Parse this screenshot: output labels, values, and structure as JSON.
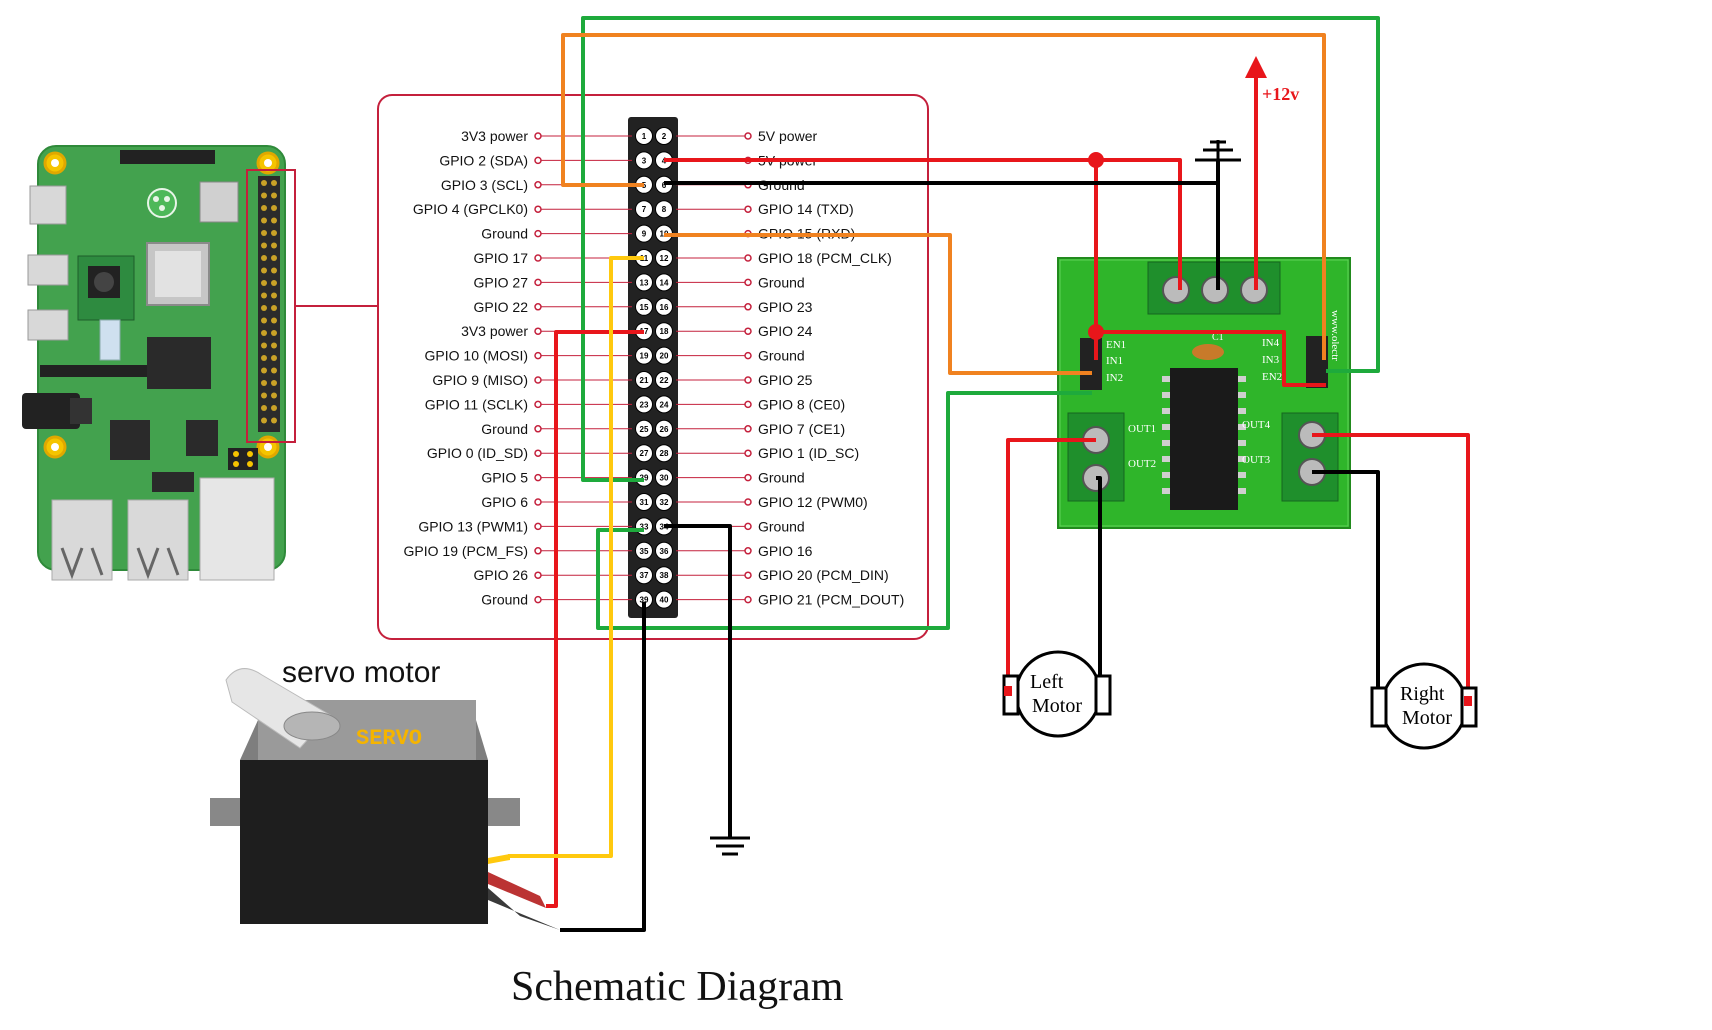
{
  "title": "Schematic Diagram",
  "servo_label": "servo motor",
  "servo_brand": "SERVO",
  "supply_label": "+12v",
  "left_motor": {
    "line1": "Left",
    "line2": "Motor"
  },
  "right_motor": {
    "line1": "Right",
    "line2": "Motor"
  },
  "driver": {
    "pins_left": [
      "EN1",
      "IN1",
      "IN2"
    ],
    "pins_right": [
      "IN4",
      "IN3",
      "EN2"
    ],
    "out_left": [
      "OUT1",
      "OUT2"
    ],
    "out_right": [
      "OUT4",
      "OUT3"
    ],
    "chip_id": "C1",
    "side_text": "www.olectr"
  },
  "gpio_header": {
    "left_labels": [
      "3V3 power",
      "GPIO 2 (SDA)",
      "GPIO 3 (SCL)",
      "GPIO 4 (GPCLK0)",
      "Ground",
      "GPIO 17",
      "GPIO 27",
      "GPIO 22",
      "3V3 power",
      "GPIO 10 (MOSI)",
      "GPIO 9 (MISO)",
      "GPIO 11 (SCLK)",
      "Ground",
      "GPIO 0 (ID_SD)",
      "GPIO 5",
      "GPIO 6",
      "GPIO 13 (PWM1)",
      "GPIO 19 (PCM_FS)",
      "GPIO 26",
      "Ground"
    ],
    "right_labels": [
      "5V power",
      "5V power",
      "Ground",
      "GPIO 14 (TXD)",
      "GPIO 15 (RXD)",
      "GPIO 18 (PCM_CLK)",
      "Ground",
      "GPIO 23",
      "GPIO 24",
      "Ground",
      "GPIO 25",
      "GPIO 8 (CE0)",
      "GPIO 7 (CE1)",
      "GPIO 1 (ID_SC)",
      "Ground",
      "GPIO 12 (PWM0)",
      "Ground",
      "GPIO 16",
      "GPIO 20 (PCM_DIN)",
      "GPIO 21 (PCM_DOUT)"
    ],
    "left_pins": [
      "1",
      "3",
      "5",
      "7",
      "9",
      "11",
      "13",
      "15",
      "17",
      "19",
      "21",
      "23",
      "25",
      "27",
      "29",
      "31",
      "33",
      "35",
      "37",
      "39"
    ],
    "right_pins": [
      "2",
      "4",
      "6",
      "8",
      "10",
      "12",
      "14",
      "16",
      "18",
      "20",
      "22",
      "24",
      "26",
      "28",
      "30",
      "32",
      "34",
      "36",
      "38",
      "40"
    ]
  },
  "colors": {
    "red": "#e8161b",
    "orange": "#f08220",
    "green": "#1eaa3c",
    "yellow": "#ffc90e",
    "black": "#000000",
    "board": "#3fa34d",
    "pcb": "#2fb52a",
    "frame": "#c4203c"
  }
}
